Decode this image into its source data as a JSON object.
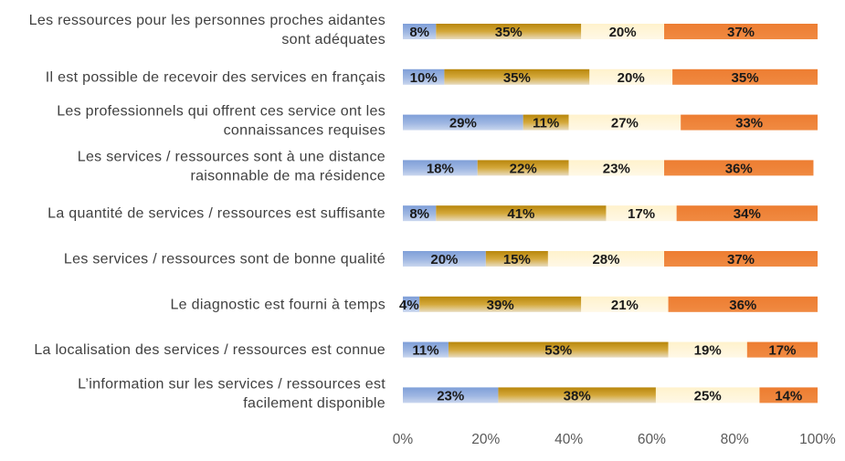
{
  "chart_data": {
    "type": "bar",
    "orientation": "horizontal",
    "stacked": true,
    "percent_stacked": true,
    "categories": [
      [
        "Les ressources pour les personnes proches aidantes",
        "sont adéquates"
      ],
      [
        "Il est possible de recevoir des services en français"
      ],
      [
        "Les professionnels qui offrent ces service ont les",
        "connaissances requises"
      ],
      [
        "Les services / ressources sont à une distance",
        "raisonnable de ma résidence"
      ],
      [
        "La quantité de services / ressources est suffisante"
      ],
      [
        "Les services / ressources sont de bonne qualité"
      ],
      [
        "Le diagnostic est fourni à temps"
      ],
      [
        "La localisation des services / ressources est connue"
      ],
      [
        "L’information sur les services / ressources est",
        "facilement disponible"
      ]
    ],
    "series": [
      {
        "values": [
          8,
          10,
          29,
          18,
          8,
          20,
          4,
          11,
          23
        ],
        "labels": [
          "8%",
          "10%",
          "29%",
          "18%",
          "8%",
          "20%",
          "4%",
          "11%",
          "23%"
        ]
      },
      {
        "values": [
          35,
          35,
          11,
          22,
          41,
          15,
          39,
          53,
          38
        ],
        "labels": [
          "35%",
          "35%",
          "11%",
          "22%",
          "41%",
          "15%",
          "39%",
          "53%",
          "38%"
        ]
      },
      {
        "values": [
          20,
          20,
          27,
          23,
          17,
          28,
          21,
          19,
          25
        ],
        "labels": [
          "20%",
          "20%",
          "27%",
          "23%",
          "17%",
          "28%",
          "21%",
          "19%",
          "25%"
        ]
      },
      {
        "values": [
          37,
          35,
          33,
          36,
          34,
          37,
          36,
          17,
          14
        ],
        "labels": [
          "37%",
          "35%",
          "33%",
          "36%",
          "34%",
          "37%",
          "36%",
          "17%",
          "14%"
        ]
      }
    ],
    "colors": [
      "#8faadc",
      "#bf9000",
      "#fff2cc",
      "#ed7d31"
    ],
    "xlim": [
      0,
      100
    ],
    "xticks": [
      "0%",
      "20%",
      "40%",
      "60%",
      "80%",
      "100%"
    ],
    "title": "",
    "xlabel": "",
    "ylabel": "",
    "grid": false,
    "legend": "none"
  }
}
